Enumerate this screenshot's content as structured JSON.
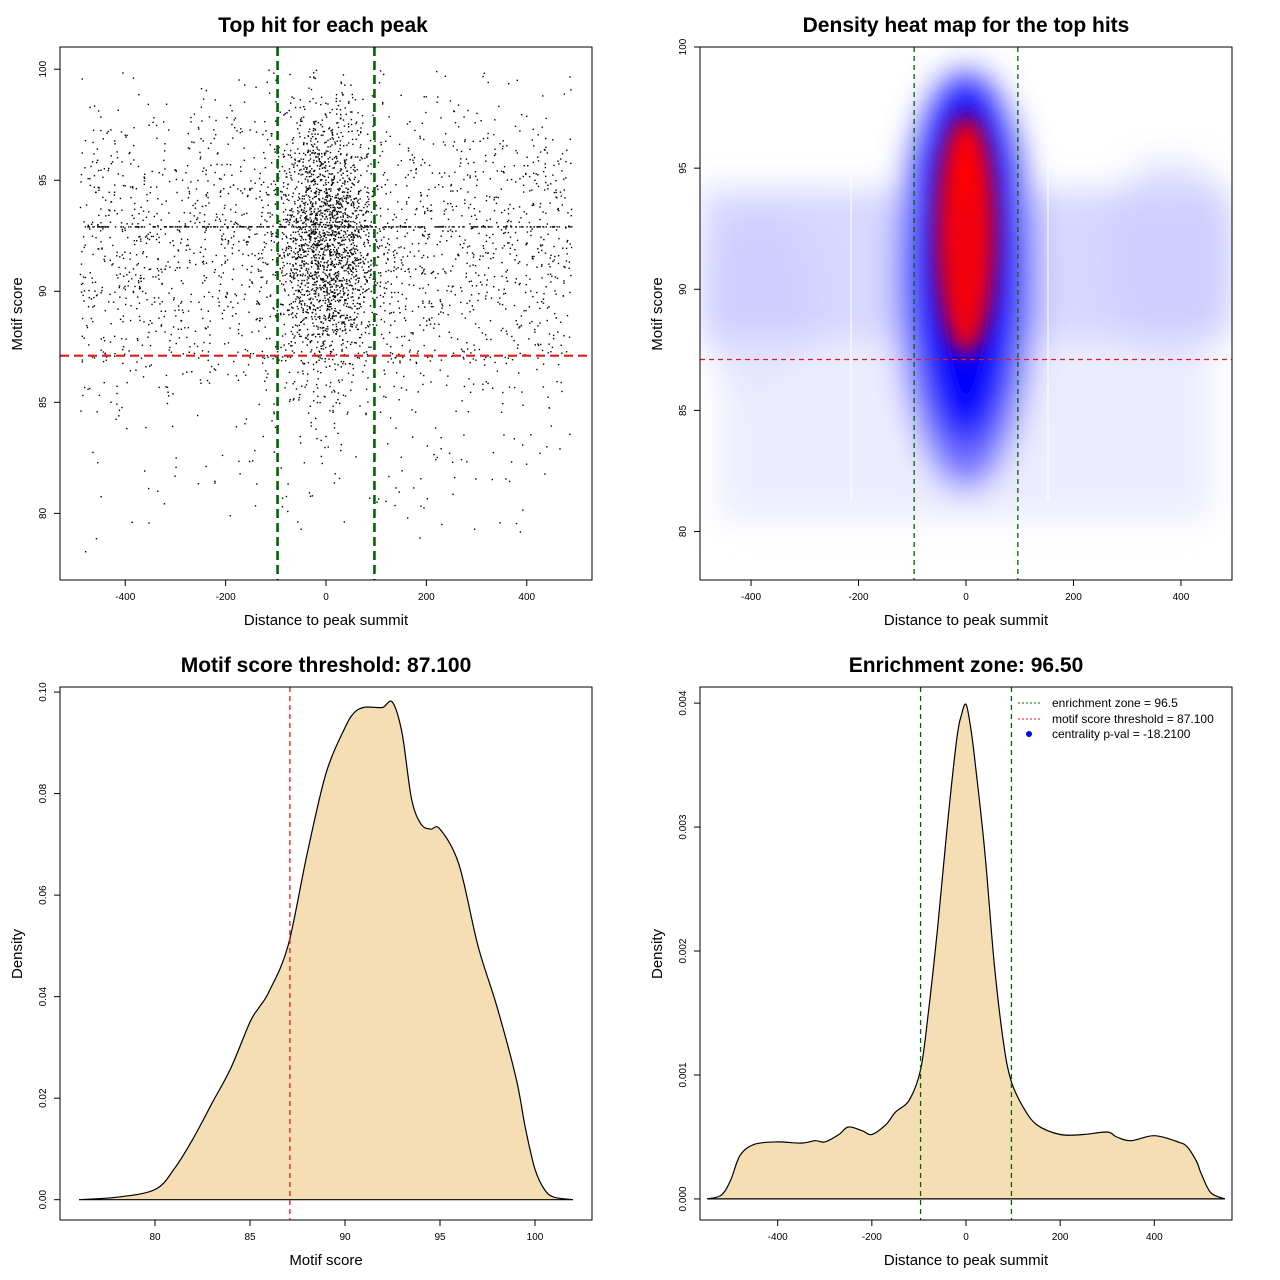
{
  "chart_data": [
    {
      "type": "scatter",
      "title": "Top hit for each peak",
      "xlabel": "Distance to peak summit",
      "ylabel": "Motif score",
      "xlim": [
        -530,
        530
      ],
      "ylim": [
        77,
        101
      ],
      "xticks": [
        "-400",
        "-200",
        "0",
        "200",
        "400"
      ],
      "yticks": [
        "80",
        "85",
        "90",
        "95",
        "100"
      ],
      "vlines": [
        -96.5,
        96.5
      ],
      "hline": 87.1,
      "vline_color": "#006400",
      "hline_color": "#e31a1c",
      "point_color": "#000000"
    },
    {
      "type": "heatmap",
      "title": "Density heat map for the top hits",
      "xlabel": "Distance to peak summit",
      "ylabel": "Motif score",
      "xlim": [
        -495,
        495
      ],
      "ylim": [
        78,
        100
      ],
      "xticks": [
        "-400",
        "-200",
        "0",
        "200",
        "400"
      ],
      "yticks": [
        "80",
        "85",
        "90",
        "95",
        "100"
      ],
      "vlines": [
        -96.5,
        96.5
      ],
      "hline": 87.1,
      "colors": [
        "#ffffff",
        "#0000ff",
        "#ff0000"
      ],
      "peak_center": [
        0,
        92.5
      ]
    },
    {
      "type": "area",
      "title": "Motif score threshold: 87.100",
      "xlabel": "Motif score",
      "ylabel": "Density",
      "xlim": [
        75,
        103
      ],
      "ylim": [
        -0.004,
        0.101
      ],
      "xticks": [
        "80",
        "85",
        "90",
        "95",
        "100"
      ],
      "yticks": [
        "0.00",
        "0.02",
        "0.04",
        "0.06",
        "0.08",
        "0.10"
      ],
      "vline": 87.1,
      "fill": "#f5deb3",
      "x": [
        76,
        78,
        80,
        81,
        82,
        83,
        84,
        85,
        85.5,
        86,
        87,
        88,
        89,
        90,
        90.5,
        91,
        91.5,
        92,
        92.5,
        93,
        93.5,
        94,
        94.5,
        95,
        96,
        97,
        98,
        99,
        99.5,
        100,
        100.5,
        101,
        102
      ],
      "y": [
        0.0,
        0.0005,
        0.002,
        0.006,
        0.012,
        0.019,
        0.026,
        0.035,
        0.038,
        0.041,
        0.05,
        0.068,
        0.084,
        0.093,
        0.096,
        0.097,
        0.097,
        0.097,
        0.098,
        0.092,
        0.079,
        0.074,
        0.073,
        0.073,
        0.066,
        0.05,
        0.038,
        0.024,
        0.014,
        0.006,
        0.002,
        0.0005,
        0.0
      ]
    },
    {
      "type": "area",
      "title": "Enrichment zone: 96.50",
      "xlabel": "Distance to peak summit",
      "ylabel": "Density",
      "xlim": [
        -565,
        565
      ],
      "ylim": [
        -0.00017,
        0.00413
      ],
      "xticks": [
        "-400",
        "-200",
        "0",
        "200",
        "400"
      ],
      "yticks": [
        "0.000",
        "0.001",
        "0.002",
        "0.003",
        "0.004"
      ],
      "vlines": [
        -96.5,
        96.5
      ],
      "fill": "#f5deb3",
      "x": [
        -550,
        -520,
        -500,
        -480,
        -450,
        -400,
        -350,
        -320,
        -300,
        -270,
        -250,
        -220,
        -200,
        -170,
        -150,
        -120,
        -96,
        -80,
        -60,
        -40,
        -20,
        -10,
        0,
        10,
        20,
        40,
        60,
        80,
        96,
        120,
        150,
        200,
        250,
        300,
        320,
        350,
        400,
        450,
        470,
        490,
        500,
        520,
        550
      ],
      "y": [
        0.0,
        3e-05,
        0.00015,
        0.00035,
        0.00044,
        0.00046,
        0.00045,
        0.00047,
        0.00046,
        0.00052,
        0.00058,
        0.00055,
        0.00052,
        0.0006,
        0.0007,
        0.0008,
        0.00105,
        0.0015,
        0.0022,
        0.003,
        0.0037,
        0.0039,
        0.00399,
        0.0038,
        0.0035,
        0.0028,
        0.0019,
        0.00125,
        0.00095,
        0.00075,
        0.0006,
        0.00052,
        0.00052,
        0.00054,
        0.0005,
        0.00047,
        0.00051,
        0.00046,
        0.00042,
        0.0003,
        0.0002,
        5e-05,
        0.0
      ]
    }
  ],
  "legend": {
    "zone": "enrichment zone = 96.5",
    "threshold": "motif score threshold = 87.100",
    "pval": "centrality p-val = -18.2100"
  }
}
